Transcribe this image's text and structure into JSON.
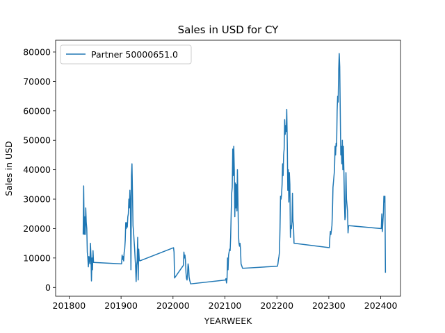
{
  "chart_data": {
    "type": "line",
    "title": "Sales in USD for CY",
    "xlabel": "YEARWEEK",
    "ylabel": "Sales in USD",
    "xlim": [
      201774,
      202438
    ],
    "ylim": [
      -3000,
      84000
    ],
    "xticks": [
      201800,
      201900,
      202000,
      202100,
      202200,
      202300,
      202400
    ],
    "yticks": [
      0,
      10000,
      20000,
      30000,
      40000,
      50000,
      60000,
      70000,
      80000
    ],
    "grid": false,
    "legend_position": "top-left",
    "series": [
      {
        "name": "Partner 50000651.0",
        "color": "#1f77b4",
        "points": [
          [
            201827,
            18000
          ],
          [
            201828,
            34500
          ],
          [
            201829,
            18000
          ],
          [
            201830,
            24000
          ],
          [
            201831,
            18000
          ],
          [
            201832,
            27000
          ],
          [
            201833,
            22000
          ],
          [
            201834,
            20000
          ],
          [
            201835,
            12000
          ],
          [
            201836,
            10000
          ],
          [
            201837,
            7000
          ],
          [
            201838,
            10500
          ],
          [
            201839,
            9500
          ],
          [
            201840,
            8000
          ],
          [
            201841,
            15000
          ],
          [
            201842,
            11000
          ],
          [
            201843,
            2200
          ],
          [
            201844,
            10000
          ],
          [
            201845,
            6000
          ],
          [
            201846,
            12500
          ],
          [
            201847,
            8500
          ],
          [
            201901,
            8000
          ],
          [
            201902,
            11000
          ],
          [
            201903,
            9500
          ],
          [
            201904,
            10500
          ],
          [
            201905,
            9000
          ],
          [
            201906,
            12000
          ],
          [
            201907,
            13000
          ],
          [
            201908,
            16000
          ],
          [
            201909,
            22000
          ],
          [
            201910,
            20000
          ],
          [
            201911,
            22000
          ],
          [
            201912,
            20500
          ],
          [
            201913,
            24000
          ],
          [
            201914,
            25000
          ],
          [
            201915,
            30000
          ],
          [
            201916,
            27000
          ],
          [
            201917,
            33000
          ],
          [
            201918,
            29000
          ],
          [
            201919,
            6000
          ],
          [
            201920,
            38000
          ],
          [
            201921,
            42000
          ],
          [
            201922,
            32000
          ],
          [
            201923,
            21000
          ],
          [
            201924,
            19000
          ],
          [
            201925,
            16000
          ],
          [
            201926,
            13500
          ],
          [
            201927,
            10000
          ],
          [
            201928,
            7000
          ],
          [
            201929,
            2000
          ],
          [
            201930,
            7500
          ],
          [
            201931,
            9000
          ],
          [
            201932,
            17000
          ],
          [
            201933,
            2500
          ],
          [
            201934,
            13000
          ],
          [
            201935,
            9500
          ],
          [
            201936,
            9000
          ],
          [
            202001,
            13500
          ],
          [
            202002,
            12000
          ],
          [
            202003,
            3200
          ],
          [
            202020,
            7500
          ],
          [
            202021,
            12000
          ],
          [
            202022,
            10000
          ],
          [
            202023,
            11000
          ],
          [
            202024,
            9000
          ],
          [
            202025,
            5000
          ],
          [
            202026,
            3000
          ],
          [
            202027,
            2500
          ],
          [
            202028,
            4500
          ],
          [
            202029,
            8000
          ],
          [
            202030,
            7000
          ],
          [
            202031,
            3500
          ],
          [
            202032,
            2500
          ],
          [
            202034,
            1200
          ],
          [
            202101,
            2500
          ],
          [
            202102,
            3000
          ],
          [
            202103,
            1500
          ],
          [
            202104,
            2800
          ],
          [
            202105,
            10000
          ],
          [
            202106,
            6000
          ],
          [
            202107,
            11000
          ],
          [
            202108,
            12000
          ],
          [
            202109,
            13000
          ],
          [
            202110,
            12500
          ],
          [
            202111,
            17000
          ],
          [
            202112,
            25000
          ],
          [
            202113,
            32000
          ],
          [
            202114,
            34000
          ],
          [
            202115,
            47000
          ],
          [
            202116,
            38000
          ],
          [
            202117,
            48000
          ],
          [
            202118,
            40000
          ],
          [
            202119,
            24000
          ],
          [
            202120,
            35500
          ],
          [
            202121,
            27000
          ],
          [
            202122,
            35000
          ],
          [
            202123,
            26000
          ],
          [
            202124,
            40000
          ],
          [
            202125,
            30000
          ],
          [
            202126,
            18000
          ],
          [
            202127,
            15000
          ],
          [
            202128,
            14000
          ],
          [
            202129,
            15000
          ],
          [
            202130,
            13000
          ],
          [
            202131,
            8000
          ],
          [
            202132,
            7500
          ],
          [
            202134,
            6500
          ],
          [
            202201,
            7200
          ],
          [
            202202,
            8000
          ],
          [
            202203,
            9500
          ],
          [
            202204,
            10500
          ],
          [
            202205,
            12000
          ],
          [
            202206,
            20000
          ],
          [
            202207,
            31000
          ],
          [
            202208,
            30000
          ],
          [
            202209,
            31500
          ],
          [
            202210,
            35000
          ],
          [
            202211,
            42000
          ],
          [
            202212,
            38000
          ],
          [
            202213,
            45000
          ],
          [
            202214,
            47000
          ],
          [
            202215,
            57000
          ],
          [
            202216,
            52000
          ],
          [
            202217,
            55000
          ],
          [
            202218,
            53000
          ],
          [
            202219,
            60500
          ],
          [
            202220,
            49000
          ],
          [
            202221,
            33000
          ],
          [
            202222,
            40000
          ],
          [
            202223,
            29000
          ],
          [
            202224,
            39000
          ],
          [
            202225,
            35000
          ],
          [
            202226,
            17000
          ],
          [
            202227,
            21000
          ],
          [
            202228,
            20000
          ],
          [
            202229,
            22000
          ],
          [
            202230,
            32000
          ],
          [
            202231,
            22500
          ],
          [
            202232,
            21000
          ],
          [
            202233,
            15000
          ],
          [
            202301,
            13500
          ],
          [
            202302,
            17000
          ],
          [
            202303,
            19000
          ],
          [
            202304,
            18000
          ],
          [
            202305,
            19500
          ],
          [
            202306,
            21000
          ],
          [
            202307,
            26000
          ],
          [
            202308,
            34000
          ],
          [
            202309,
            36000
          ],
          [
            202310,
            38000
          ],
          [
            202311,
            40000
          ],
          [
            202312,
            48000
          ],
          [
            202313,
            45000
          ],
          [
            202314,
            49000
          ],
          [
            202315,
            48000
          ],
          [
            202316,
            60000
          ],
          [
            202317,
            65000
          ],
          [
            202318,
            63000
          ],
          [
            202319,
            74000
          ],
          [
            202320,
            79500
          ],
          [
            202321,
            75000
          ],
          [
            202322,
            60000
          ],
          [
            202323,
            45000
          ],
          [
            202324,
            48000
          ],
          [
            202325,
            42000
          ],
          [
            202326,
            50000
          ],
          [
            202327,
            40000
          ],
          [
            202328,
            48000
          ],
          [
            202329,
            40000
          ],
          [
            202330,
            29000
          ],
          [
            202331,
            23000
          ],
          [
            202332,
            24000
          ],
          [
            202333,
            39000
          ],
          [
            202334,
            30000
          ],
          [
            202335,
            28000
          ],
          [
            202336,
            26000
          ],
          [
            202337,
            18500
          ],
          [
            202338,
            21000
          ],
          [
            202401,
            20000
          ],
          [
            202402,
            25000
          ],
          [
            202403,
            19000
          ],
          [
            202404,
            22000
          ],
          [
            202405,
            25000
          ],
          [
            202406,
            31000
          ],
          [
            202407,
            29000
          ],
          [
            202408,
            31000
          ],
          [
            202409,
            5000
          ]
        ]
      }
    ]
  }
}
